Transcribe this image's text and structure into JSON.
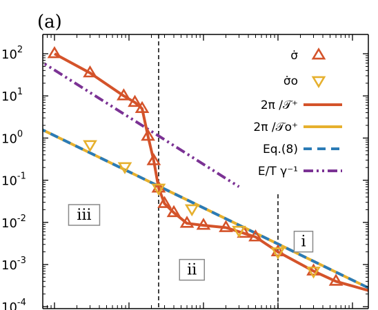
{
  "chart_data": {
    "type": "line",
    "panel_label": "(a)",
    "title": "",
    "xlabel": "",
    "ylabel": "",
    "y_scale": "log",
    "ylim": [
      0.0001,
      200
    ],
    "y_ticks": [
      {
        "value": 100,
        "base": "10",
        "exp": "2"
      },
      {
        "value": 10,
        "base": "10",
        "exp": "1"
      },
      {
        "value": 1,
        "base": "10",
        "exp": "0"
      },
      {
        "value": 0.1,
        "base": "10",
        "exp": "-1"
      },
      {
        "value": 0.01,
        "base": "10",
        "exp": "-2"
      },
      {
        "value": 0.001,
        "base": "10",
        "exp": "-3"
      },
      {
        "value": 0.0001,
        "base": "10",
        "exp": "-4"
      }
    ],
    "x_scale": "log",
    "x_tick_labels_visible": false,
    "grid": false,
    "legend_position": "top-right",
    "legend": [
      {
        "label": "σ̇",
        "kind": "marker-up",
        "color": "#d4532a"
      },
      {
        "label": "σ̇o",
        "kind": "marker-down",
        "color": "#e6b02e"
      },
      {
        "label": "2π /𝒯⁺",
        "kind": "line",
        "color": "#d4532a"
      },
      {
        "label": "2π /𝒯o⁺",
        "kind": "line",
        "color": "#e6b02e"
      },
      {
        "label": "Eq.(8)",
        "kind": "dashed",
        "color": "#2b7bb6"
      },
      {
        "label": "E/T γ⁻¹",
        "kind": "dashdotdot",
        "color": "#7b3294"
      }
    ],
    "regions": [
      {
        "label": "iii",
        "x": 0.0025,
        "y": 0.015
      },
      {
        "label": "ii",
        "x": 0.07,
        "y": 0.00075
      },
      {
        "label": "i",
        "x": 2.2,
        "y": 0.0035
      }
    ],
    "vlines": [
      0.025,
      1.0
    ],
    "series": [
      {
        "name": "σ̇",
        "style": "marker-up",
        "color": "#d4532a",
        "x": [
          0.001,
          0.003,
          0.0085,
          0.012,
          0.015,
          0.018,
          0.0215,
          0.025,
          0.03,
          0.04,
          0.06,
          0.1,
          0.2,
          0.35,
          0.5,
          1.0,
          3.0,
          6.0,
          24.0
        ],
        "y": [
          100,
          35,
          10,
          7,
          5,
          1.1,
          0.29,
          0.065,
          0.028,
          0.017,
          0.0095,
          0.0085,
          0.0075,
          0.0055,
          0.0045,
          0.002,
          0.0007,
          0.0004,
          0.0002
        ]
      },
      {
        "name": "σ̇o",
        "style": "marker-down",
        "color": "#e6b02e",
        "x": [
          0.0003,
          0.003,
          0.0088,
          0.025,
          0.07,
          0.3,
          1.0,
          3.0,
          24.0
        ],
        "y": [
          2.1,
          0.7,
          0.21,
          0.065,
          0.021,
          0.0065,
          0.002,
          0.0007,
          0.0002
        ]
      },
      {
        "name": "2π /𝒯⁺",
        "style": "line",
        "color": "#d4532a",
        "x": [
          0.001,
          0.003,
          0.0085,
          0.012,
          0.015,
          0.018,
          0.0215,
          0.025,
          0.03,
          0.04,
          0.06,
          0.1,
          0.2,
          0.35,
          0.5,
          1.0,
          3.0,
          6.0,
          24.0
        ],
        "y": [
          100,
          35,
          10,
          7,
          5,
          1.1,
          0.29,
          0.065,
          0.028,
          0.017,
          0.0095,
          0.0085,
          0.0075,
          0.0055,
          0.0045,
          0.002,
          0.0007,
          0.0004,
          0.0002
        ]
      },
      {
        "name": "2π /𝒯o⁺",
        "style": "line",
        "color": "#e6b02e",
        "x": [
          0.00028,
          40
        ],
        "y": [
          3.4,
          0.00013
        ]
      },
      {
        "name": "Eq.(8)",
        "style": "dashed",
        "color": "#2b7bb6",
        "x": [
          0.00028,
          40
        ],
        "y": [
          3.4,
          0.00013
        ]
      },
      {
        "name": "E/T γ⁻¹",
        "style": "dashdotdot",
        "color": "#7b3294",
        "x": [
          0.00028,
          0.3
        ],
        "y": [
          170,
          0.07
        ]
      }
    ]
  }
}
